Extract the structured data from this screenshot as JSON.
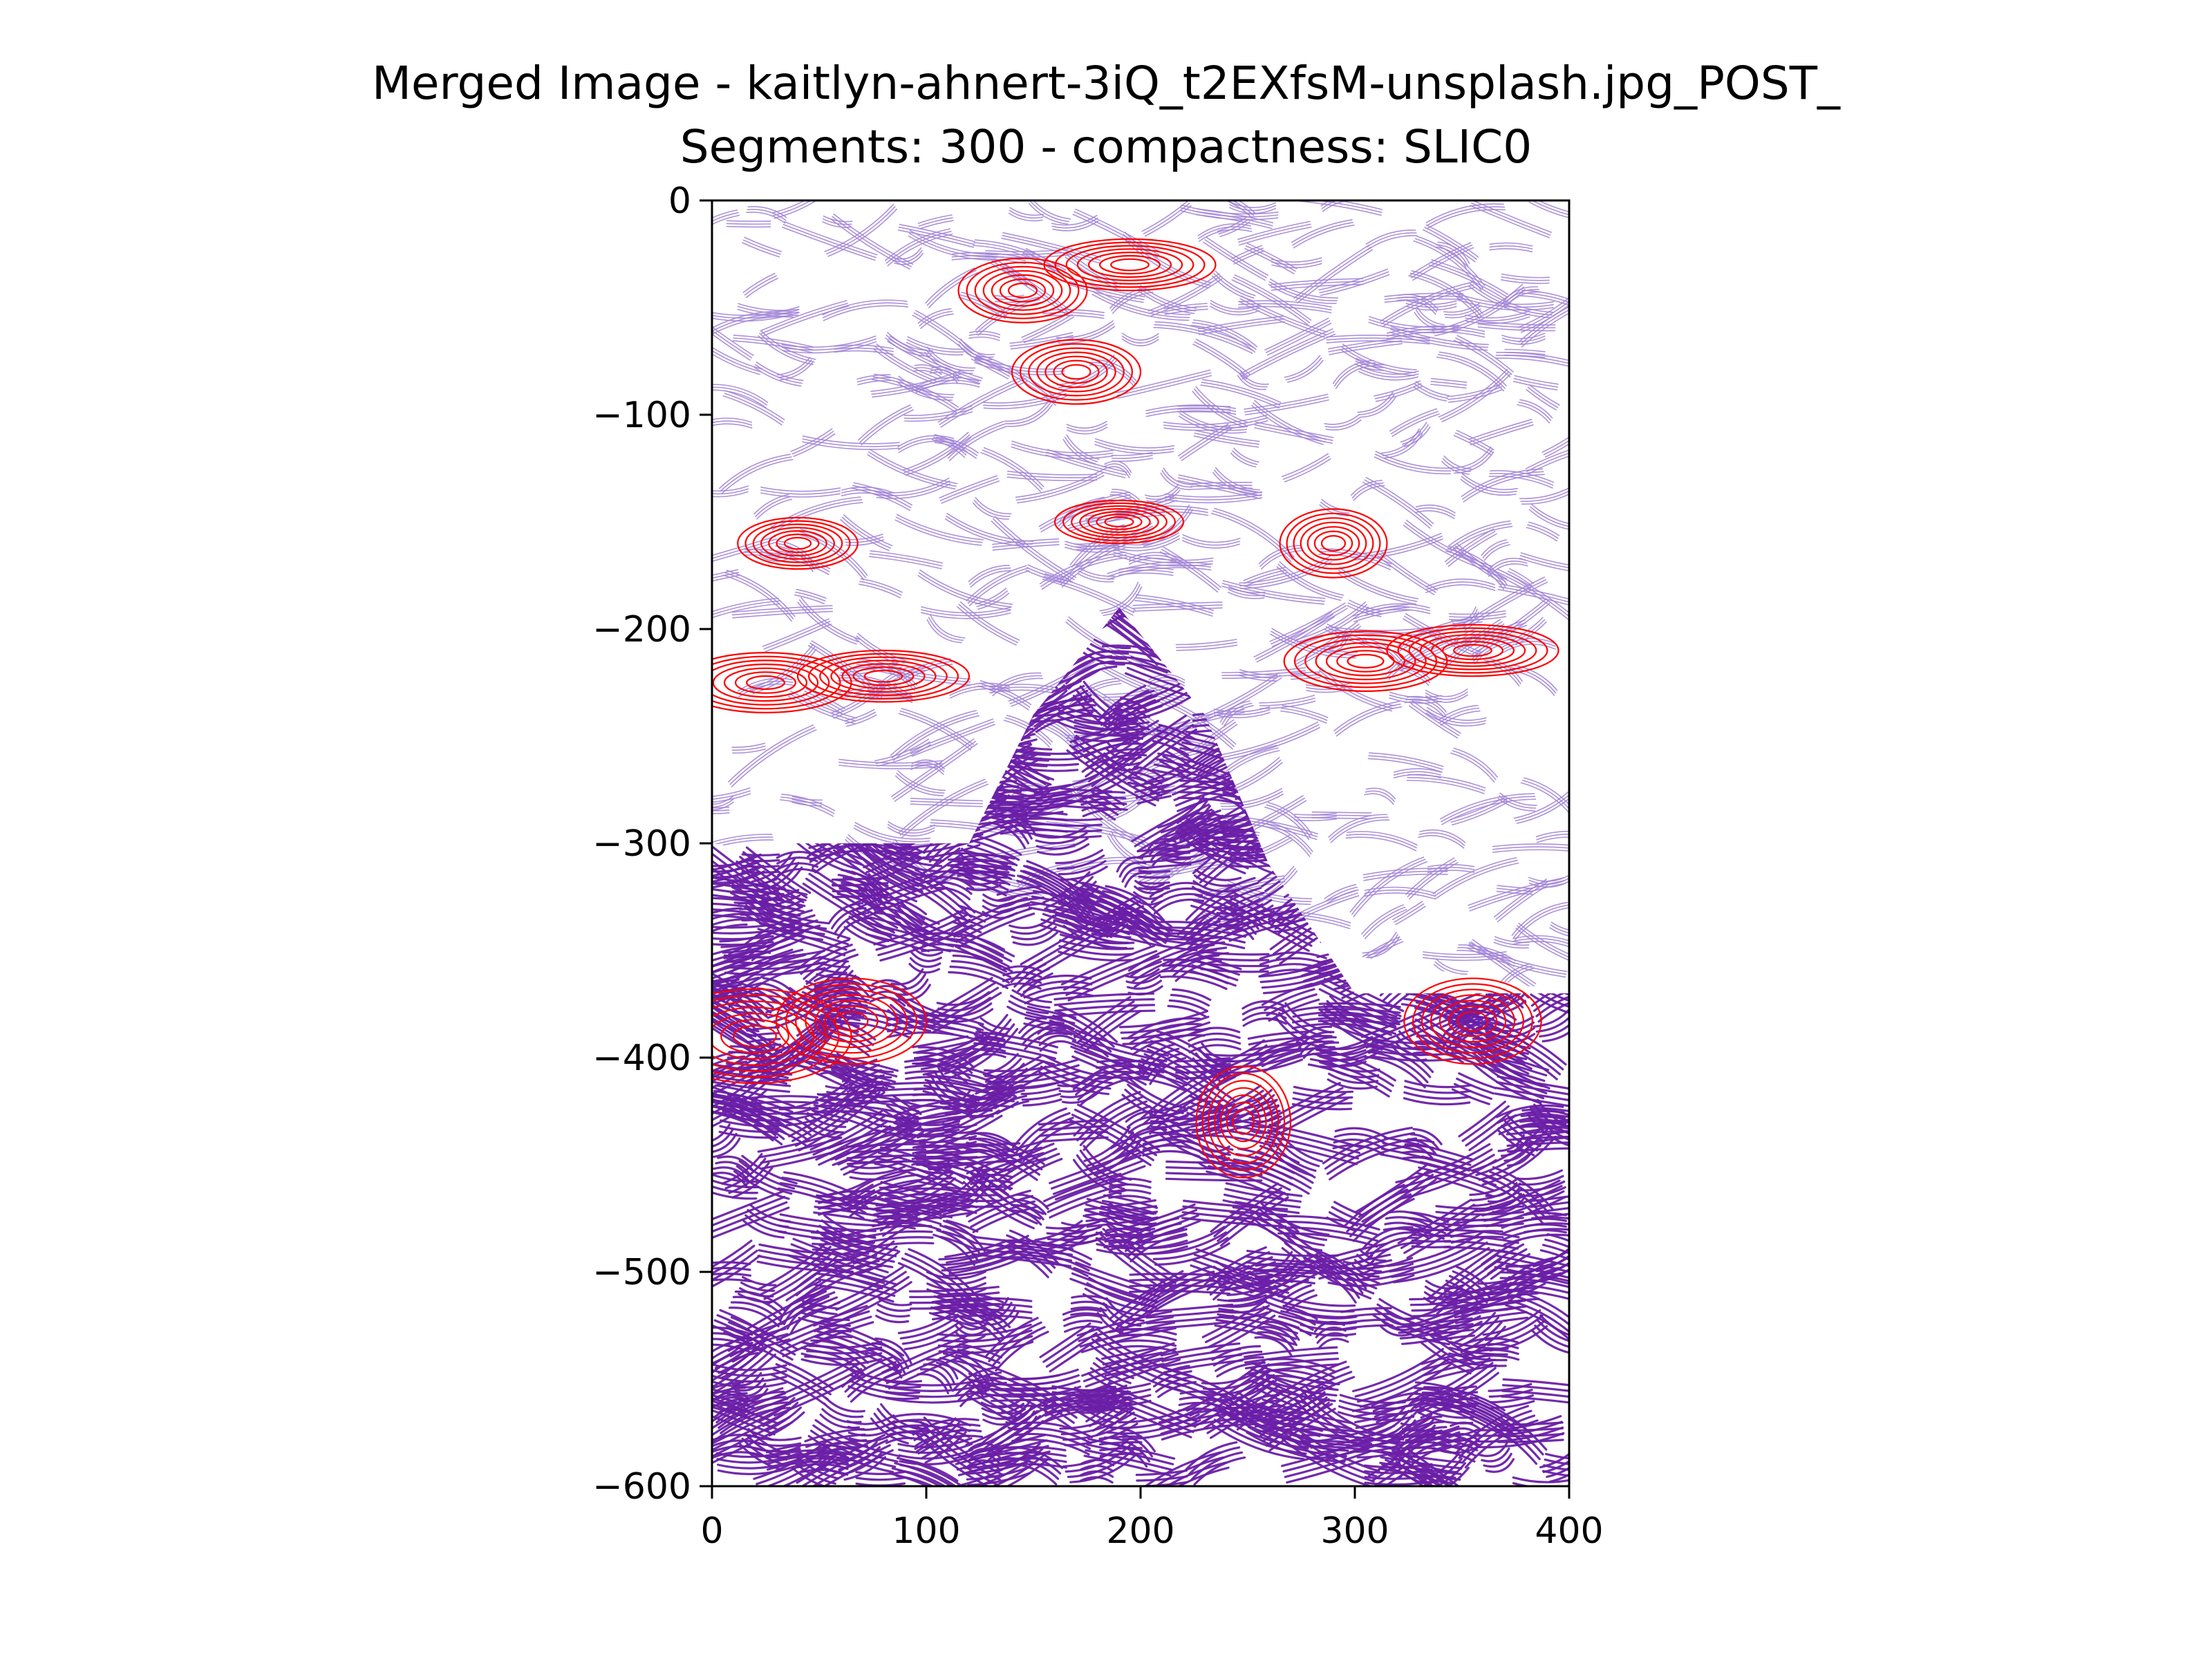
{
  "title_lines": [
    "Merged Image - kaitlyn-ahnert-3iQ_t2EXfsM-unsplash.jpg_POST_",
    "Segments: 300 - compactness: SLIC0"
  ],
  "colors": {
    "light_purple": "#a385d6",
    "dark_purple": "#6a1fa6",
    "red": "#ff0000",
    "axis": "#000000"
  },
  "chart_data": {
    "type": "streamplot",
    "title": "Merged Image - kaitlyn-ahnert-3iQ_t2EXfsM-unsplash.jpg_POST_\nSegments: 300 - compactness: SLIC0",
    "xlabel": "",
    "ylabel": "",
    "xlim": [
      0,
      400
    ],
    "ylim": [
      -600,
      0
    ],
    "x_ticks": [
      0,
      100,
      200,
      300,
      400
    ],
    "y_ticks": [
      0,
      -100,
      -200,
      -300,
      -400,
      -500,
      -600
    ],
    "x_tick_labels": [
      "0",
      "100",
      "200",
      "300",
      "400"
    ],
    "y_tick_labels": [
      "0",
      "−100",
      "−200",
      "−300",
      "−400",
      "−500",
      "−600"
    ],
    "grid": false,
    "regions": [
      {
        "color_key": "light_purple",
        "shape": [
          [
            0,
            0
          ],
          [
            400,
            0
          ],
          [
            400,
            -370
          ],
          [
            0,
            -300
          ]
        ]
      },
      {
        "color_key": "dark_purple",
        "shape": [
          [
            0,
            -300
          ],
          [
            120,
            -300
          ],
          [
            150,
            -240
          ],
          [
            190,
            -190
          ],
          [
            230,
            -240
          ],
          [
            260,
            -310
          ],
          [
            300,
            -370
          ],
          [
            400,
            -370
          ],
          [
            400,
            -600
          ],
          [
            0,
            -600
          ]
        ]
      }
    ],
    "highlights": [
      {
        "x": 195,
        "y": -30,
        "w": 40,
        "h": 12
      },
      {
        "x": 170,
        "y": -80,
        "w": 30,
        "h": 15
      },
      {
        "x": 145,
        "y": -42,
        "w": 30,
        "h": 15
      },
      {
        "x": 40,
        "y": -160,
        "w": 28,
        "h": 12
      },
      {
        "x": 190,
        "y": -150,
        "w": 30,
        "h": 10
      },
      {
        "x": 290,
        "y": -160,
        "w": 25,
        "h": 16
      },
      {
        "x": 25,
        "y": -225,
        "w": 40,
        "h": 14
      },
      {
        "x": 80,
        "y": -222,
        "w": 40,
        "h": 12
      },
      {
        "x": 305,
        "y": -215,
        "w": 38,
        "h": 14
      },
      {
        "x": 355,
        "y": -210,
        "w": 40,
        "h": 12
      },
      {
        "x": 20,
        "y": -390,
        "w": 45,
        "h": 22
      },
      {
        "x": 65,
        "y": -383,
        "w": 35,
        "h": 20
      },
      {
        "x": 355,
        "y": -383,
        "w": 32,
        "h": 20
      },
      {
        "x": 248,
        "y": -430,
        "w": 22,
        "h": 26
      }
    ]
  }
}
